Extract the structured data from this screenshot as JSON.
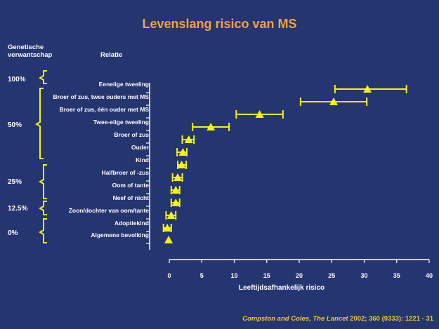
{
  "title": "Levenslang risico van MS",
  "headers": {
    "genetic_line1": "Genetische",
    "genetic_line2": "verwantschap",
    "relation": "Relatie"
  },
  "percent_labels": [
    "100%",
    "50%",
    "25%",
    "12.5%",
    "0%"
  ],
  "citation": {
    "journal": "Compston and Coles, The Lancet",
    "ref": " 2002; 360 (9333): 1221 - 31"
  },
  "colors": {
    "background": "#25356f",
    "title": "#f2a53a",
    "marker": "#f5f50a",
    "bracket": "#f5f50a",
    "citation": "#f2c531",
    "axis": "#ffffff"
  },
  "chart_data": {
    "type": "scatter",
    "title": "Levenslang risico van MS",
    "xlabel": "Leeftijdsafhankelijk risico",
    "ylabel": "",
    "xlim": [
      0,
      40
    ],
    "xticks": [
      0,
      5,
      10,
      15,
      20,
      25,
      30,
      35,
      40
    ],
    "grid": false,
    "categories": [
      "Eeneiige tweeling",
      "Broer of zus, twee ouders met MS",
      "Broer of zus, één ouder met MS",
      "Twee-eiige tweeling",
      "Broer of zus",
      "Ouder",
      "Kind",
      "Halfbroer of -zus",
      "Oom of tante",
      "Neef of nicht",
      "Zoon/dochter van oom/tante",
      "Adoptiekind",
      "Algemene bevolking"
    ],
    "values": [
      30.5,
      25.3,
      13.9,
      6.4,
      3.0,
      2.1,
      1.9,
      1.3,
      1.0,
      1.0,
      0.3,
      -0.3,
      -0.1
    ],
    "ci_low": [
      25.5,
      20.2,
      10.3,
      3.6,
      2.0,
      1.2,
      1.3,
      0.5,
      0.3,
      0.3,
      -0.5,
      -0.9,
      null
    ],
    "ci_high": [
      36.5,
      30.4,
      17.5,
      9.2,
      3.8,
      2.7,
      2.6,
      2.0,
      1.6,
      1.6,
      1.0,
      0.3,
      null
    ]
  }
}
